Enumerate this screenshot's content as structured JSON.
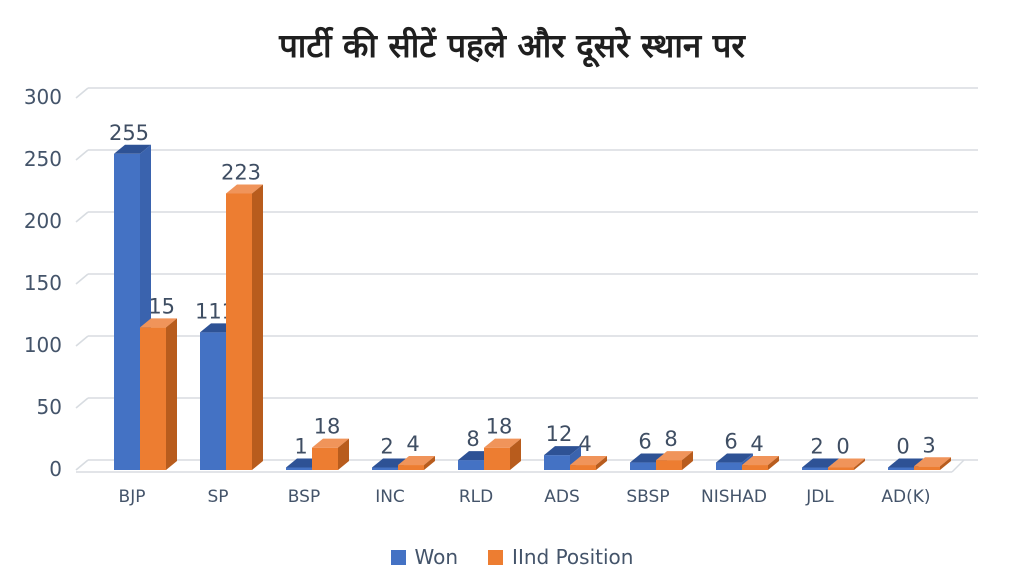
{
  "title": "पार्टी की सीटें पहले और दूसरे स्थान पर",
  "chart_data": {
    "type": "bar",
    "subtype": "3d-clustered-column",
    "title": "पार्टी की सीटें पहले और दूसरे स्थान पर",
    "categories": [
      "BJP",
      "SP",
      "BSP",
      "INC",
      "RLD",
      "ADS",
      "SBSP",
      "NISHAD",
      "JDL",
      "AD(K)"
    ],
    "series": [
      {
        "name": "Won",
        "values": [
          255,
          111,
          1,
          2,
          8,
          12,
          6,
          6,
          2,
          0
        ],
        "color": "#4472C4",
        "color_top": "#2E5295",
        "color_side": "#3A63AE"
      },
      {
        "name": "IInd Position",
        "values": [
          115,
          223,
          18,
          4,
          18,
          4,
          8,
          4,
          0,
          3
        ],
        "color": "#ED7D31",
        "color_top": "#F0945A",
        "color_side": "#B85C1D"
      }
    ],
    "yticks": [
      0,
      50,
      100,
      150,
      200,
      250,
      300
    ],
    "ylim": [
      0,
      300
    ],
    "grid": true,
    "data_labels": true,
    "legend_position": "bottom",
    "xlabel": "",
    "ylabel": ""
  },
  "legend": {
    "items": [
      {
        "label": "Won",
        "color": "#4472C4"
      },
      {
        "label": "IInd Position",
        "color": "#ED7D31"
      }
    ]
  },
  "style": {
    "grid_color": "#D8DCE1",
    "tick_label_color": "#44546A",
    "data_label_color": "#3F4E63",
    "category_label_color": "#44546A",
    "background": "#FFFFFF"
  }
}
